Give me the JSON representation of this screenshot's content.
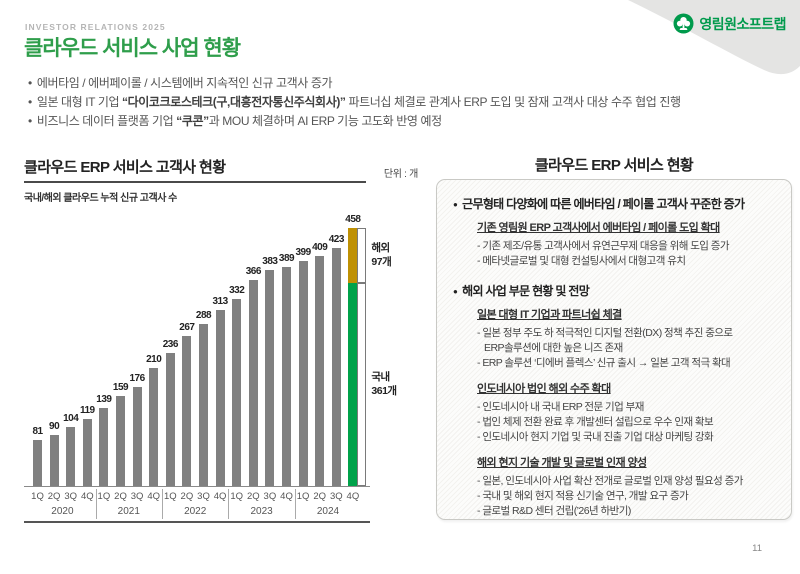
{
  "header": {
    "eyebrow": "INVESTOR RELATIONS 2025",
    "title": "클라우드 서비스 사업 현황",
    "logo_text": "영림원소프트랩",
    "logo_color": "#009a4c"
  },
  "bullets": [
    [
      {
        "t": "에버타임 / 에버페이롤 / 시스템에버 지속적인 신규 고객사 증가",
        "b": false
      }
    ],
    [
      {
        "t": "일본 대형 IT 기업 ",
        "b": false
      },
      {
        "t": "“다이코크로스테크(구,대흥전자통신주식회사)”",
        "b": true
      },
      {
        "t": " 파트너십 체결로 관계사 ERP 도입 및 잠재 고객사 대상 수주 협업 진행",
        "b": false
      }
    ],
    [
      {
        "t": "비즈니스 데이터 플랫폼 기업 ",
        "b": false
      },
      {
        "t": "“쿠콘”",
        "b": true
      },
      {
        "t": "과 MOU 체결하며 AI ERP 기능 고도화 반영 예정",
        "b": false
      }
    ]
  ],
  "chart_data": {
    "type": "bar",
    "title": "클라우드 ERP 서비스 고객사 현황",
    "unit_label": "단위 : 개",
    "subtitle": "국내/해외 클라우드 누적 신규 고객사 수",
    "years": [
      "2020",
      "2021",
      "2022",
      "2023",
      "2024"
    ],
    "quarters": [
      "1Q",
      "2Q",
      "3Q",
      "4Q"
    ],
    "values": [
      81,
      90,
      104,
      119,
      139,
      159,
      176,
      210,
      236,
      267,
      288,
      313,
      332,
      366,
      383,
      389,
      399,
      409,
      423,
      458
    ],
    "bar_color": "#808080",
    "ylim": [
      0,
      470
    ],
    "final_bar": {
      "total": 458,
      "segments": [
        {
          "name": "해외",
          "value": 97,
          "label": "해외\n97개",
          "color": "#bf9104"
        },
        {
          "name": "국내",
          "value": 361,
          "label": "국내\n361개",
          "color": "#00a24a"
        }
      ]
    }
  },
  "panel": {
    "title": "클라우드 ERP 서비스 현황",
    "sections": [
      {
        "heading": "근무형태 다양화에 따른 에버타임 / 페이롤 고객사 꾸준한 증가",
        "groups": [
          {
            "subheading": "기존 영림원 ERP 고객사에서 에버타임 / 페이롤 도입 확대",
            "items": [
              "기존 제조/유통 고객사에서 유연근무제 대응을 위해 도입 증가",
              "메타넷글로벌 및 대형 컨설팅사에서 대형고객 유치"
            ]
          }
        ]
      },
      {
        "heading": "해외 사업 부문 현황 및 전망",
        "groups": [
          {
            "subheading": "일본 대형 IT 기업과 파트너쉽 체결",
            "items": [
              "일본 정부 주도 하 적극적인 디지털 전환(DX) 정책 추진 중으로\n ERP솔루션에 대한 높은 니즈 존재",
              "ERP 솔루션 ‘디에버 플렉스’ 신규 출시 → 일본 고객 적극 확대"
            ]
          },
          {
            "subheading": "인도네시아 법인 해외 수주 확대",
            "items": [
              "인도네시아 내 국내 ERP 전문 기업 부재",
              "법인 체제 전환 완료 후 개발센터 설립으로 우수 인재 확보",
              "인도네시아 현지 기업 및 국내 진출 기업 대상 마케팅 강화"
            ]
          },
          {
            "subheading": "해외 현지 기술 개발 및 글로벌 인재 양성",
            "items": [
              "일본, 인도네시아 사업 확산 전개로 글로벌 인재 양성 필요성 증가",
              "국내 및 해외 현지 적용 신기술 연구, 개발 요구 증가",
              "글로벌 R&D 센터 건립(’26년 하반기)"
            ]
          }
        ]
      }
    ]
  },
  "footer": {
    "page_number": "11"
  }
}
